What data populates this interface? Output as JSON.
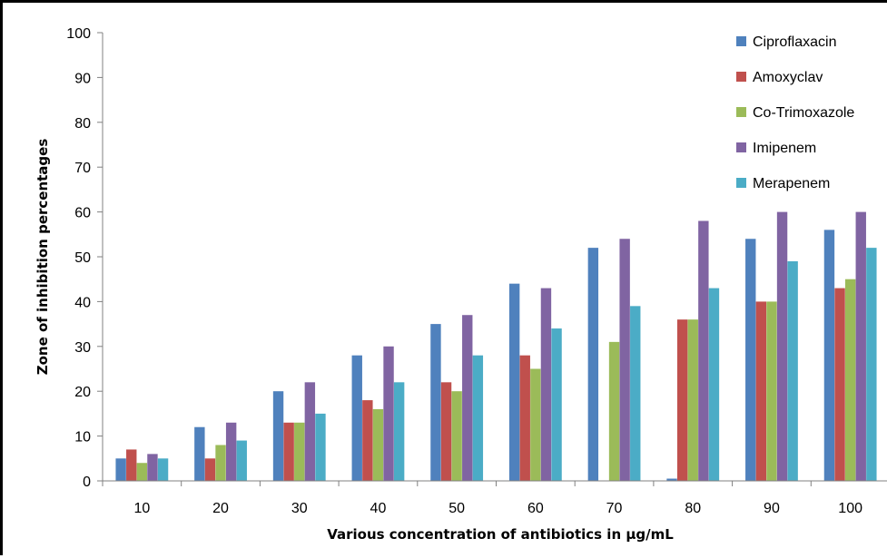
{
  "chart_data": {
    "type": "bar",
    "title": "",
    "xlabel": "Various concentration of antibiotics in μg/mL",
    "ylabel": "Zone of inhibition percentages",
    "ylim": [
      0,
      100
    ],
    "yticks": [
      "0",
      "10",
      "20",
      "30",
      "40",
      "50",
      "60",
      "70",
      "80",
      "90",
      "100"
    ],
    "categories": [
      "10",
      "20",
      "30",
      "40",
      "50",
      "60",
      "70",
      "80",
      "90",
      "100"
    ],
    "grid": false,
    "legend_position": "top-right",
    "series": [
      {
        "name": "Ciproflaxacin",
        "color": "#4F81BD",
        "values": [
          5,
          12,
          20,
          28,
          35,
          44,
          52,
          0.5,
          54,
          56
        ]
      },
      {
        "name": "Amoxyclav",
        "color": "#C0504D",
        "values": [
          7,
          5,
          13,
          18,
          22,
          28,
          0,
          36,
          40,
          43
        ]
      },
      {
        "name": "Co-Trimoxazole",
        "color": "#9BBB59",
        "values": [
          4,
          8,
          13,
          16,
          20,
          25,
          31,
          36,
          40,
          45
        ]
      },
      {
        "name": "Imipenem",
        "color": "#8064A2",
        "values": [
          6,
          13,
          22,
          30,
          37,
          43,
          54,
          58,
          60,
          60
        ]
      },
      {
        "name": "Merapenem",
        "color": "#4BACC6",
        "values": [
          5,
          9,
          15,
          22,
          28,
          34,
          39,
          43,
          49,
          52
        ]
      }
    ]
  }
}
